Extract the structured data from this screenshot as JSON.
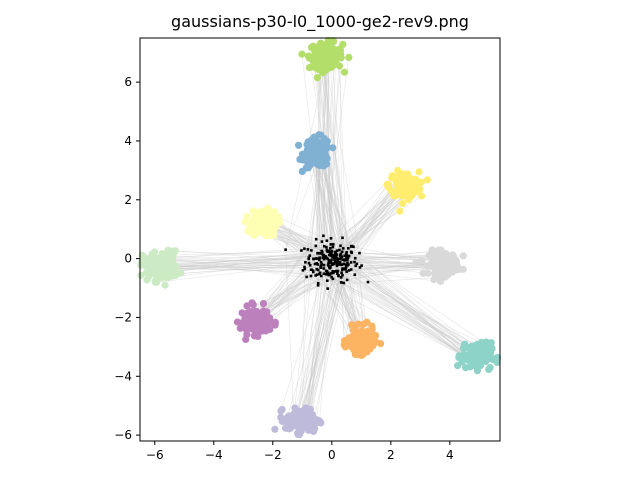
{
  "window": {
    "title": "gaussians-p30-l0_1000-ge2-rev9.png"
  },
  "chart_data": {
    "type": "scatter",
    "title": "gaussians-p30-l0_1000-ge2-rev9.png",
    "xlabel": "",
    "ylabel": "",
    "xlim": [
      -6.5,
      5.7
    ],
    "ylim": [
      -6.2,
      7.5
    ],
    "xticks": [
      -6,
      -4,
      -2,
      0,
      2,
      4
    ],
    "yticks": [
      -6,
      -4,
      -2,
      0,
      2,
      4,
      6
    ],
    "xtick_labels": [
      "−6",
      "−4",
      "−2",
      "0",
      "2",
      "4"
    ],
    "ytick_labels": [
      "−6",
      "−4",
      "−2",
      "0",
      "2",
      "4",
      "6"
    ],
    "grid": false,
    "clusters": [
      {
        "cx": -0.2,
        "cy": 6.9,
        "sx": 0.28,
        "sy": 0.22,
        "color": "#b3de69"
      },
      {
        "cx": -0.5,
        "cy": 3.6,
        "sx": 0.22,
        "sy": 0.25,
        "color": "#80b1d3"
      },
      {
        "cx": 2.45,
        "cy": 2.5,
        "sx": 0.25,
        "sy": 0.22,
        "color": "#ffed6f"
      },
      {
        "cx": -2.3,
        "cy": 1.2,
        "sx": 0.22,
        "sy": 0.22,
        "color": "#ffffb3"
      },
      {
        "cx": -5.8,
        "cy": -0.25,
        "sx": 0.3,
        "sy": 0.25,
        "color": "#ccebc5"
      },
      {
        "cx": 3.8,
        "cy": -0.15,
        "sx": 0.25,
        "sy": 0.2,
        "color": "#d9d9d9"
      },
      {
        "cx": -2.6,
        "cy": -2.1,
        "sx": 0.25,
        "sy": 0.22,
        "color": "#bc80bd"
      },
      {
        "cx": 1.0,
        "cy": -2.8,
        "sx": 0.22,
        "sy": 0.22,
        "color": "#fdb462"
      },
      {
        "cx": 4.9,
        "cy": -3.3,
        "sx": 0.25,
        "sy": 0.22,
        "color": "#8dd3c7"
      },
      {
        "cx": -1.0,
        "cy": -5.5,
        "sx": 0.28,
        "sy": 0.2,
        "color": "#bebada"
      }
    ],
    "center_points": {
      "cx": 0.0,
      "cy": -0.1,
      "sx": 0.45,
      "sy": 0.35,
      "color": "#000000"
    },
    "connection_line_color": "#c8c8c8"
  }
}
